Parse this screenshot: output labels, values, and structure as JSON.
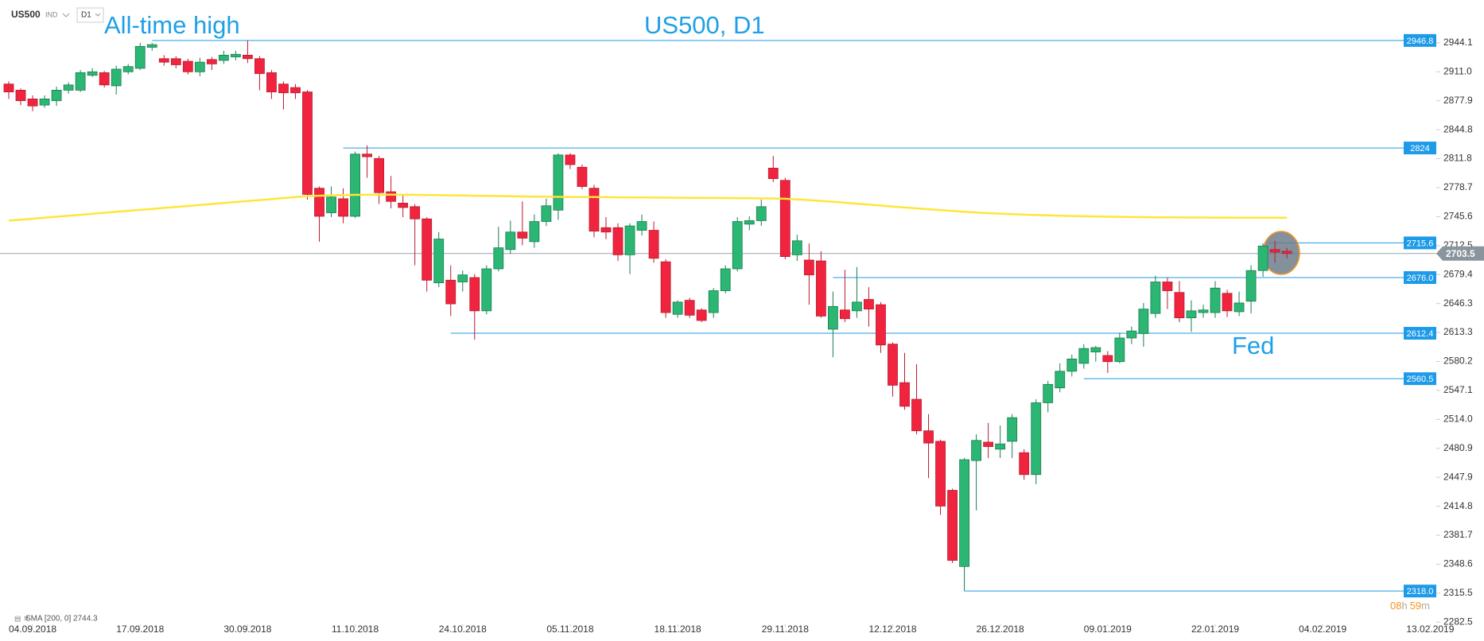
{
  "header": {
    "symbol": "US500",
    "market": "IND",
    "timeframe": "D1"
  },
  "chart_data": {
    "type": "candlestick",
    "title": "US500, D1",
    "annotations": [
      "All-time high",
      "Fed"
    ],
    "indicator_label": "SMA [200, 0] 2744.3",
    "countdown": [
      "08",
      "h",
      "59",
      "m"
    ],
    "categories": [
      null,
      null,
      "04.09.2018",
      null,
      null,
      null,
      null,
      null,
      null,
      null,
      null,
      "17.09.2018",
      null,
      null,
      null,
      null,
      null,
      null,
      null,
      null,
      "30.09.2018",
      null,
      null,
      null,
      null,
      null,
      null,
      null,
      null,
      "11.10.2018",
      null,
      null,
      null,
      null,
      null,
      null,
      null,
      null,
      "24.10.2018",
      null,
      null,
      null,
      null,
      null,
      null,
      null,
      null,
      "05.11.2018",
      null,
      null,
      null,
      null,
      null,
      null,
      null,
      null,
      "18.11.2018",
      null,
      null,
      null,
      null,
      null,
      null,
      null,
      null,
      "29.11.2018",
      null,
      null,
      null,
      null,
      null,
      null,
      null,
      null,
      "12.12.2018",
      null,
      null,
      null,
      null,
      null,
      null,
      null,
      null,
      "26.12.2018",
      null,
      null,
      null,
      null,
      null,
      null,
      null,
      null,
      "09.01.2019",
      null,
      null,
      null,
      null,
      null,
      null,
      null,
      null,
      "22.01.2019",
      null,
      null,
      null,
      null,
      null,
      null,
      null,
      null,
      "04.02.2019",
      null,
      null,
      null,
      null,
      null,
      null,
      null,
      null,
      "13.02.2019"
    ],
    "open": [
      2897,
      2890,
      2880,
      2873,
      2878,
      2890,
      2890,
      2907,
      2910,
      2895,
      2911,
      2915,
      2939,
      2926,
      2926,
      2923,
      2911,
      2925,
      2924,
      2928,
      2930,
      2926,
      2910,
      2897,
      2893,
      2888,
      2778,
      2750,
      2766,
      2746,
      2817,
      2812,
      2774,
      2761,
      2757,
      2743,
      2670,
      2673,
      2671,
      2676,
      2638,
      2686,
      2708,
      2728,
      2717,
      2740,
      2753,
      2816,
      2802,
      2778,
      2733,
      2733,
      2702,
      2730,
      2730,
      2694,
      2634,
      2650,
      2639,
      2636,
      2661,
      2686,
      2737,
      2741,
      2801,
      2787,
      2702,
      2696,
      2695,
      2617,
      2639,
      2638,
      2651,
      2645,
      2600,
      2556,
      2537,
      2501,
      2489,
      2433,
      2346,
      2467,
      2488,
      2480,
      2489,
      2476,
      2451,
      2533,
      2550,
      2569,
      2578,
      2591,
      2587,
      2580,
      2607,
      2612,
      2635,
      2671,
      2659,
      2630,
      2636,
      2636,
      2658,
      2637,
      2649,
      2684,
      2708,
      2706,
      null,
      null,
      null,
      null,
      null,
      null,
      null,
      null,
      null,
      null,
      null,
      null
    ],
    "high": [
      2900,
      2892,
      2884,
      2884,
      2894,
      2899,
      2913,
      2915,
      2912,
      2918,
      2920,
      2944,
      2944,
      2930,
      2929,
      2926,
      2927,
      2928,
      2935,
      2935,
      2946.8,
      2929,
      2913,
      2900,
      2897,
      2890,
      2780,
      2780,
      2778,
      2820,
      2827,
      2815,
      2792,
      2770,
      2760,
      2745,
      2728,
      2690,
      2684,
      2680,
      2690,
      2734,
      2741,
      2763,
      2748,
      2766,
      2818,
      2818,
      2805,
      2782,
      2745,
      2738,
      2738,
      2748,
      2740,
      2697,
      2650,
      2653,
      2641,
      2664,
      2690,
      2745,
      2746,
      2765,
      2815,
      2790,
      2725,
      2715,
      2706,
      2660,
      2685,
      2688,
      2665,
      2648,
      2602,
      2590,
      2577,
      2520,
      2491,
      2435,
      2470,
      2497,
      2510,
      2507,
      2520,
      2480,
      2537,
      2558,
      2578,
      2588,
      2600,
      2598,
      2592,
      2613,
      2620,
      2647,
      2678,
      2676,
      2672,
      2650,
      2645,
      2672,
      2662,
      2660,
      2690,
      2715,
      2718,
      2710,
      null,
      null,
      null,
      null,
      null,
      null,
      null,
      null,
      null,
      null,
      null,
      null
    ],
    "low": [
      2880,
      2873,
      2866,
      2870,
      2872,
      2886,
      2888,
      2905,
      2893,
      2885,
      2908,
      2913,
      2935,
      2918,
      2915,
      2908,
      2906,
      2913,
      2920,
      2924,
      2921,
      2890,
      2880,
      2868,
      2880,
      2765,
      2717,
      2745,
      2738,
      2744,
      2790,
      2760,
      2755,
      2745,
      2690,
      2660,
      2665,
      2632,
      2660,
      2605,
      2634,
      2683,
      2703,
      2713,
      2710,
      2735,
      2742,
      2800,
      2777,
      2722,
      2720,
      2695,
      2680,
      2724,
      2693,
      2630,
      2630,
      2630,
      2625,
      2630,
      2658,
      2683,
      2730,
      2735,
      2785,
      2697,
      2695,
      2645,
      2630,
      2585,
      2625,
      2630,
      2620,
      2590,
      2540,
      2525,
      2497,
      2447,
      2405,
      2350,
      2318,
      2410,
      2470,
      2470,
      2470,
      2445,
      2440,
      2522,
      2545,
      2563,
      2572,
      2580,
      2567,
      2578,
      2600,
      2597,
      2630,
      2640,
      2625,
      2614,
      2630,
      2630,
      2631,
      2632,
      2635,
      2677,
      2693,
      2698,
      null,
      null,
      null,
      null,
      null,
      null,
      null,
      null,
      null,
      null,
      null,
      null
    ],
    "close": [
      2888,
      2878,
      2872,
      2880,
      2890,
      2896,
      2910,
      2911,
      2896,
      2914,
      2917,
      2940,
      2942,
      2922,
      2919,
      2911,
      2922,
      2920,
      2930,
      2931,
      2926,
      2909,
      2888,
      2887,
      2887,
      2771,
      2746,
      2768,
      2746,
      2817,
      2814,
      2773,
      2763,
      2756,
      2743,
      2673,
      2720,
      2646,
      2679,
      2638,
      2686,
      2710,
      2728,
      2721,
      2740,
      2758,
      2816,
      2805,
      2780,
      2729,
      2728,
      2702,
      2735,
      2740,
      2698,
      2636,
      2648,
      2633,
      2627,
      2661,
      2686,
      2740,
      2741,
      2757,
      2789,
      2700,
      2718,
      2679,
      2632,
      2643,
      2629,
      2648,
      2640,
      2599,
      2553,
      2529,
      2501,
      2487,
      2415,
      2353,
      2468,
      2490,
      2483,
      2486,
      2516,
      2451,
      2533,
      2554,
      2569,
      2583,
      2595,
      2596,
      2580,
      2607,
      2615,
      2640,
      2671,
      2661,
      2630,
      2638,
      2639,
      2664,
      2638,
      2647,
      2684,
      2712,
      2705,
      2703.5,
      null,
      null,
      null,
      null,
      null,
      null,
      null,
      null,
      null,
      null,
      null,
      null
    ],
    "sma": {
      "color": "#ffe53b",
      "values": [
        2741,
        2742.1,
        2743.2,
        2744.4,
        2745.5,
        2746.6,
        2747.7,
        2748.8,
        2750,
        2751.1,
        2752.2,
        2753.3,
        2754.4,
        2755.6,
        2756.7,
        2757.8,
        2758.9,
        2760,
        2761.2,
        2762.3,
        2763.4,
        2764.5,
        2765.6,
        2766.8,
        2767.9,
        2769,
        2769.5,
        2770,
        2770.3,
        2770.5,
        2770.6,
        2770.7,
        2770.7,
        2770.6,
        2770.5,
        2770.3,
        2770.1,
        2769.9,
        2769.7,
        2769.5,
        2769.3,
        2769.1,
        2768.9,
        2768.7,
        2768.5,
        2768.3,
        2768.2,
        2768.1,
        2768,
        2767.9,
        2767.8,
        2767.7,
        2767.6,
        2767.5,
        2767.4,
        2767.3,
        2767.2,
        2767.1,
        2767,
        2766.9,
        2766.8,
        2766.7,
        2766.6,
        2766.5,
        2766.3,
        2766,
        2765.3,
        2764.5,
        2763.6,
        2762.6,
        2761.5,
        2760.4,
        2759.3,
        2758.2,
        2757.1,
        2756,
        2755,
        2754,
        2753,
        2752,
        2751.1,
        2750.3,
        2749.6,
        2749,
        2748.4,
        2747.9,
        2747.4,
        2747,
        2746.6,
        2746.3,
        2746,
        2745.7,
        2745.5,
        2745.3,
        2745.1,
        2745,
        2744.9,
        2744.8,
        2744.7,
        2744.6,
        2744.6,
        2744.5,
        2744.5,
        2744.4,
        2744.4,
        2744.3,
        2744.3,
        2744.3,
        null,
        null,
        null,
        null,
        null,
        null,
        null,
        null,
        null,
        null,
        null,
        null
      ]
    },
    "up_color": "#2bb673",
    "down_color": "#f0243e",
    "levels": [
      2946.8,
      2824,
      {
        "value": 2715.6,
        "label": "2715.6"
      },
      {
        "value": 2676,
        "label": "2676.0"
      },
      2612.4,
      2560.5,
      {
        "value": 2318,
        "label": "2318.0"
      }
    ],
    "level_color": "#1e9be8",
    "last_price": 2703.5,
    "ylim": [
      2280,
      2993
    ],
    "yticks": [
      2944.1,
      {
        "value": 2911,
        "label": "2911.0"
      },
      2877.9,
      2844.8,
      2811.8,
      2778.7,
      2745.6,
      2712.5,
      2679.4,
      2646.3,
      2613.3,
      2580.2,
      2547.1,
      {
        "value": 2514,
        "label": "2514.0"
      },
      2480.9,
      2447.9,
      2414.8,
      2381.7,
      2348.6,
      2315.5,
      2282.5
    ]
  }
}
